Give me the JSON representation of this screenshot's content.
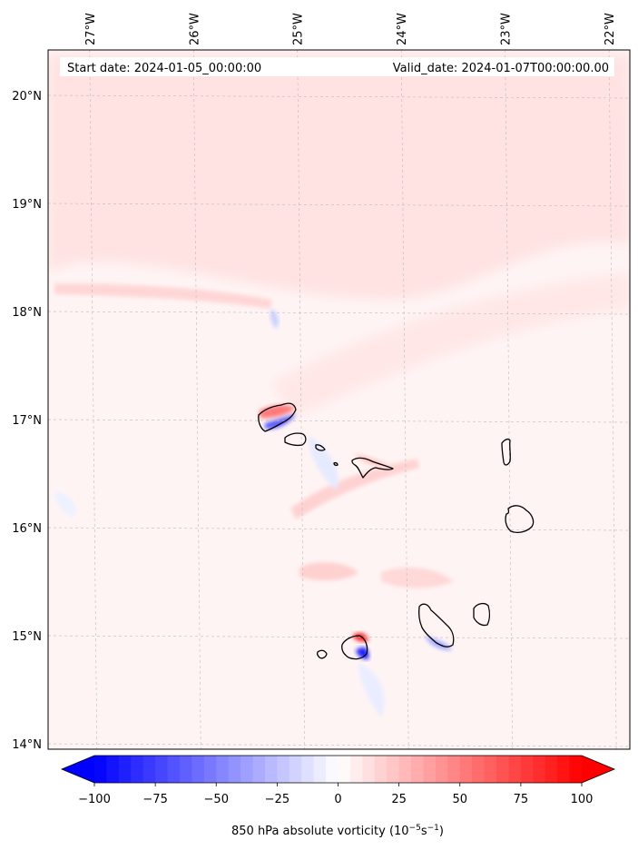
{
  "header": {
    "start_label": "Start date: 2024-01-05_00:00:00",
    "valid_label": "Valid_date: 2024-01-07T00:00:00.00"
  },
  "map": {
    "lon_range": [
      -27.4,
      -21.8
    ],
    "lat_range": [
      13.95,
      20.42
    ],
    "lon_ticks": [
      {
        "value": -27,
        "label": "27°W"
      },
      {
        "value": -26,
        "label": "26°W"
      },
      {
        "value": -25,
        "label": "25°W"
      },
      {
        "value": -24,
        "label": "24°W"
      },
      {
        "value": -23,
        "label": "23°W"
      },
      {
        "value": -22,
        "label": "22°W"
      }
    ],
    "lat_ticks": [
      {
        "value": 20,
        "label": "20°N"
      },
      {
        "value": 19,
        "label": "19°N"
      },
      {
        "value": 18,
        "label": "18°N"
      },
      {
        "value": 17,
        "label": "17°N"
      },
      {
        "value": 16,
        "label": "16°N"
      },
      {
        "value": 15,
        "label": "15°N"
      },
      {
        "value": 14,
        "label": "14°N"
      }
    ],
    "gridlines": true
  },
  "colorbar": {
    "ticks": [
      "−100",
      "−75",
      "−50",
      "−25",
      "0",
      "25",
      "50",
      "75",
      "100"
    ],
    "tick_values": [
      -100,
      -75,
      -50,
      -25,
      0,
      25,
      50,
      75,
      100
    ],
    "range": [
      -100,
      100
    ],
    "levels": 41,
    "extend": "both",
    "low_color": "#0000ff",
    "mid_color": "#ffffff",
    "high_color": "#ff0000",
    "label_main": "850 hPa absolute vorticity (10",
    "label_exp1": "−5",
    "label_mid": "s",
    "label_exp2": "−1",
    "label_end": ")"
  },
  "colors": {
    "background_field": "#fff4f4",
    "positive_weak": "#ffe4e4",
    "positive_mid": "#ffcccc",
    "positive_strong": "#ff6a6a",
    "negative_weak": "#e8ecff",
    "negative_strong": "#3030ff",
    "coast": "#000000",
    "grid": "#bbbbbb"
  }
}
